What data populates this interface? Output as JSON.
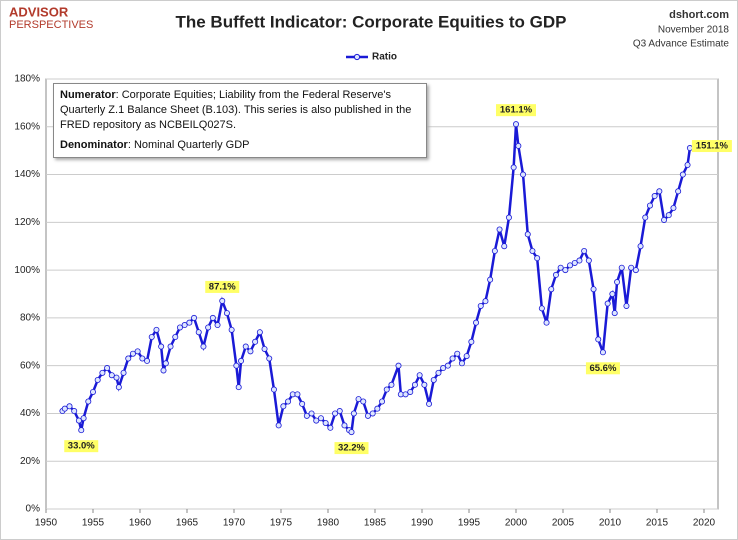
{
  "brand": {
    "name": "ADVISOR",
    "sub": "PERSPECTIVES"
  },
  "source": {
    "site": "dshort.com",
    "date": "November 2018",
    "estimate": "Q3 Advance Estimate"
  },
  "chart_data": {
    "type": "line",
    "title": "The Buffett Indicator: Corporate Equities to GDP",
    "notes": [
      {
        "label": "Numerator",
        "text": ": Corporate Equities; Liability from the Federal Reserve's Quarterly Z.1 Balance Sheet (B.103). This series is also published in the FRED repository as NCBEILQ027S."
      },
      {
        "label": "Denominator",
        "text": ": Nominal Quarterly GDP"
      }
    ],
    "xlim": [
      1950,
      2020
    ],
    "xticks": [
      1950,
      1955,
      1960,
      1965,
      1970,
      1975,
      1980,
      1985,
      1990,
      1995,
      2000,
      2005,
      2010,
      2015,
      2020
    ],
    "ylim": [
      0,
      180
    ],
    "yticks": [
      {
        "value": 0,
        "label": "0%"
      },
      {
        "value": 20,
        "label": "20%"
      },
      {
        "value": 40,
        "label": "40%"
      },
      {
        "value": 60,
        "label": "60%"
      },
      {
        "value": 80,
        "label": "80%"
      },
      {
        "value": 100,
        "label": "100%"
      },
      {
        "value": 120,
        "label": "120%"
      },
      {
        "value": 140,
        "label": "140%"
      },
      {
        "value": 160,
        "label": "160%"
      },
      {
        "value": 180,
        "label": "180%"
      }
    ],
    "grid": true,
    "legend": "top",
    "x": [
      1951.75,
      1952,
      1952.5,
      1953,
      1953.5,
      1953.75,
      1954,
      1954.5,
      1955,
      1955.5,
      1956,
      1956.5,
      1957,
      1957.5,
      1957.75,
      1958.25,
      1958.75,
      1959.25,
      1959.75,
      1960.25,
      1960.75,
      1961.25,
      1961.75,
      1962.25,
      1962.5,
      1962.75,
      1963.25,
      1963.75,
      1964.25,
      1964.75,
      1965.25,
      1965.75,
      1966.25,
      1966.75,
      1967.25,
      1967.75,
      1968.25,
      1968.75,
      1969.25,
      1969.75,
      1970.25,
      1970.5,
      1970.75,
      1971.25,
      1971.75,
      1972.25,
      1972.75,
      1973.25,
      1973.75,
      1974.25,
      1974.75,
      1975.25,
      1975.75,
      1976.25,
      1976.75,
      1977.25,
      1977.75,
      1978.25,
      1978.75,
      1979.25,
      1979.75,
      1980.25,
      1980.75,
      1981.25,
      1981.75,
      1982.25,
      1982.5,
      1982.75,
      1983.25,
      1983.75,
      1984.25,
      1984.75,
      1985.25,
      1985.75,
      1986.25,
      1986.75,
      1987.5,
      1987.75,
      1988.25,
      1988.75,
      1989.25,
      1989.75,
      1990.25,
      1990.75,
      1991.25,
      1991.75,
      1992.25,
      1992.75,
      1993.25,
      1993.75,
      1994.25,
      1994.75,
      1995.25,
      1995.75,
      1996.25,
      1996.75,
      1997.25,
      1997.75,
      1998.25,
      1998.75,
      1999.25,
      1999.75,
      2000,
      2000.25,
      2000.75,
      2001.25,
      2001.75,
      2002.25,
      2002.75,
      2003.25,
      2003.75,
      2004.25,
      2004.75,
      2005.25,
      2005.75,
      2006.25,
      2006.75,
      2007.25,
      2007.75,
      2008.25,
      2008.75,
      2009.25,
      2009.75,
      2010.25,
      2010.5,
      2010.75,
      2011.25,
      2011.75,
      2012.25,
      2012.75,
      2013.25,
      2013.75,
      2014.25,
      2014.75,
      2015.25,
      2015.75,
      2016.25,
      2016.75,
      2017.25,
      2017.75,
      2018.25,
      2018.5
    ],
    "series": [
      {
        "name": "Ratio",
        "color": "#1a1ad6",
        "values": [
          41,
          42,
          43,
          41,
          37,
          33.0,
          38,
          45,
          49,
          54,
          57,
          59,
          56,
          55,
          51,
          57,
          63,
          65,
          66,
          63,
          62,
          72,
          75,
          68,
          58,
          61,
          68,
          72,
          76,
          77,
          78,
          80,
          74,
          68,
          76,
          80,
          77,
          87.1,
          82,
          75,
          60,
          51,
          62,
          68,
          66,
          70,
          74,
          67,
          63,
          50,
          35,
          43,
          45,
          48,
          48,
          44,
          39,
          40,
          37,
          38,
          36,
          34,
          40,
          41,
          35,
          33,
          32.2,
          40,
          46,
          45,
          39,
          40,
          42,
          45,
          50,
          52,
          60,
          48,
          48,
          49,
          52,
          56,
          52,
          44,
          54,
          57,
          59,
          60,
          63,
          65,
          61,
          64,
          70,
          78,
          85,
          87,
          96,
          108,
          117,
          110,
          122,
          143,
          161.1,
          152,
          140,
          115,
          108,
          105,
          84,
          78,
          92,
          98,
          101,
          100,
          102,
          103,
          104,
          108,
          104,
          92,
          71,
          65.6,
          86,
          90,
          82,
          95,
          101,
          85,
          101,
          100,
          110,
          122,
          127,
          131,
          133,
          121,
          123,
          126,
          133,
          140,
          144,
          151.1
        ],
        "value_labels": [
          null,
          null,
          null,
          null,
          null,
          "33.0%",
          null,
          null,
          null,
          null,
          null,
          null,
          null,
          null,
          null,
          null,
          null,
          null,
          null,
          null,
          null,
          null,
          null,
          null,
          null,
          null,
          null,
          null,
          null,
          null,
          null,
          null,
          null,
          null,
          null,
          null,
          null,
          "87.1%",
          null,
          null,
          null,
          null,
          null,
          null,
          null,
          null,
          null,
          null,
          null,
          null,
          null,
          null,
          null,
          null,
          null,
          null,
          null,
          null,
          null,
          null,
          null,
          null,
          null,
          null,
          null,
          null,
          "32.2%",
          null,
          null,
          null,
          null,
          null,
          null,
          null,
          null,
          null,
          null,
          null,
          null,
          null,
          null,
          null,
          null,
          null,
          null,
          null,
          null,
          null,
          null,
          null,
          null,
          null,
          null,
          null,
          null,
          null,
          null,
          null,
          null,
          null,
          null,
          null,
          "161.1%",
          null,
          null,
          null,
          null,
          null,
          null,
          null,
          null,
          null,
          null,
          null,
          null,
          null,
          null,
          null,
          null,
          null,
          null,
          "65.6%",
          null,
          null,
          null,
          null,
          null,
          null,
          null,
          null,
          null,
          null,
          null,
          null,
          null,
          null,
          null,
          null,
          null,
          null,
          null,
          "151.1%"
        ]
      }
    ]
  }
}
